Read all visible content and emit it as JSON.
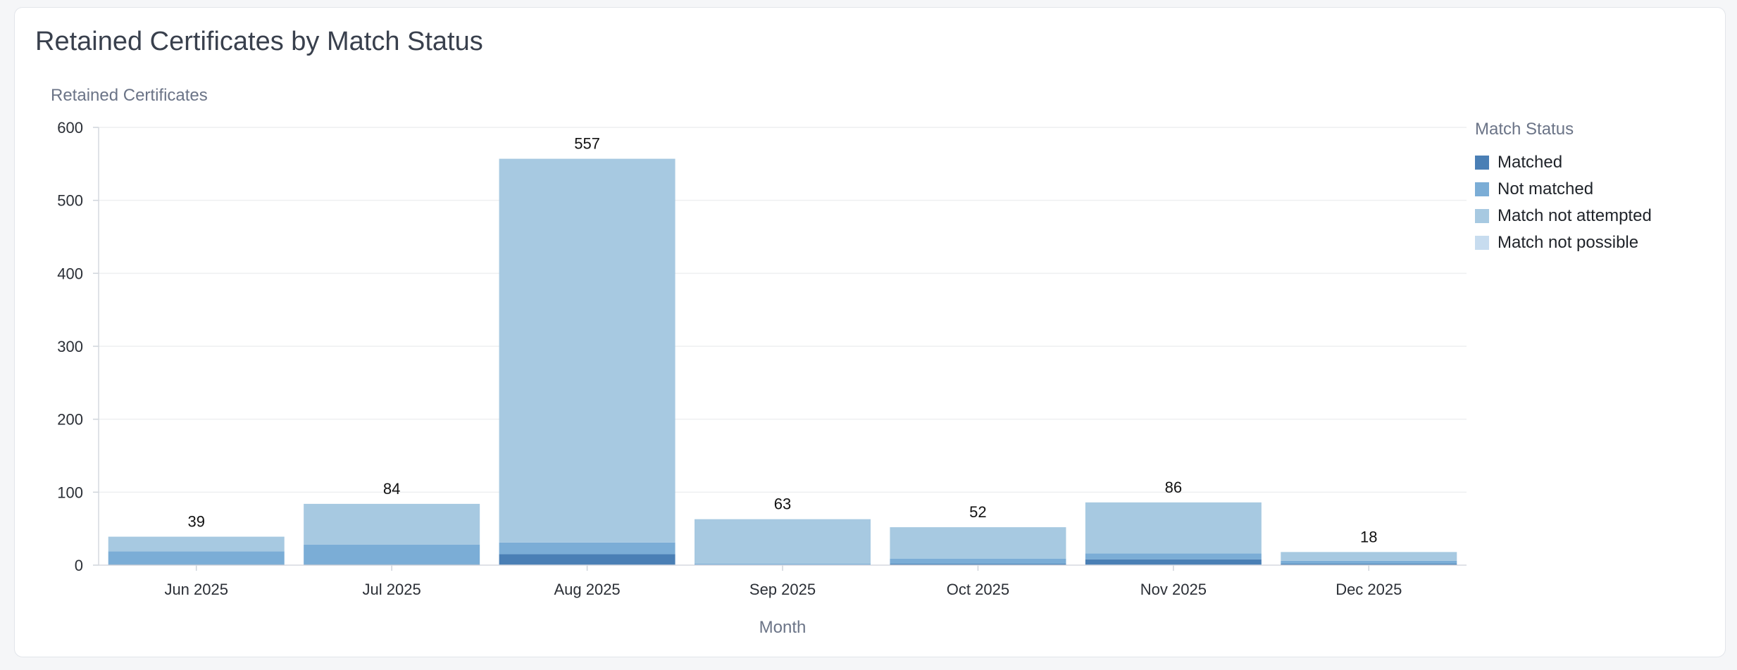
{
  "title": "Retained Certificates by Match Status",
  "chart_data": {
    "type": "bar",
    "stacked": true,
    "title": "Retained Certificates by Match Status",
    "xlabel": "Month",
    "ylabel": "Retained Certificates",
    "categories": [
      "Jun 2025",
      "Jul 2025",
      "Aug 2025",
      "Sep 2025",
      "Oct 2025",
      "Nov 2025",
      "Dec 2025"
    ],
    "ylim": [
      0,
      600
    ],
    "yticks": [
      0,
      100,
      200,
      300,
      400,
      500,
      600
    ],
    "grid": true,
    "legend": {
      "title": "Match Status",
      "placement": "right"
    },
    "totals": [
      39,
      84,
      557,
      63,
      52,
      86,
      18
    ],
    "series": [
      {
        "name": "Matched",
        "color": "#4a7fb5",
        "values": [
          1,
          1,
          15,
          0,
          2,
          8,
          2
        ]
      },
      {
        "name": "Not matched",
        "color": "#7badd6",
        "values": [
          18,
          27,
          16,
          2,
          7,
          8,
          4
        ]
      },
      {
        "name": "Match not attempted",
        "color": "#a7c9e1",
        "values": [
          20,
          56,
          526,
          61,
          43,
          70,
          12
        ]
      },
      {
        "name": "Match not possible",
        "color": "#c7dcef",
        "values": [
          0,
          0,
          0,
          0,
          0,
          0,
          0
        ]
      }
    ]
  }
}
